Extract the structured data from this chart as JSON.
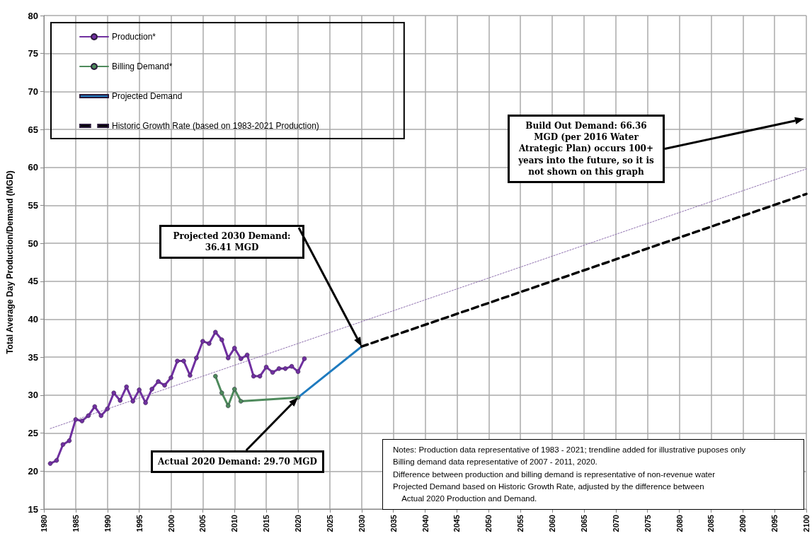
{
  "chart_data": {
    "type": "line",
    "ylabel": "Total Average Day Production/Demand (MGD)",
    "xlim": [
      1980,
      2100
    ],
    "xticks": [
      1980,
      1985,
      1990,
      1995,
      2000,
      2005,
      2010,
      2015,
      2020,
      2025,
      2030,
      2035,
      2040,
      2045,
      2050,
      2055,
      2060,
      2065,
      2070,
      2075,
      2080,
      2085,
      2090,
      2095,
      2100
    ],
    "ylim": [
      15,
      80
    ],
    "yticks": [
      15,
      20,
      25,
      30,
      35,
      40,
      45,
      50,
      55,
      60,
      65,
      70,
      75,
      80
    ],
    "grid": true,
    "legend": "top left",
    "series": [
      {
        "name": "Production*",
        "color": "#7030a0",
        "marker": "circle",
        "line_style": "solid",
        "x": [
          1981,
          1982,
          1983,
          1984,
          1985,
          1986,
          1987,
          1988,
          1989,
          1990,
          1991,
          1992,
          1993,
          1994,
          1995,
          1996,
          1997,
          1998,
          1999,
          2000,
          2001,
          2002,
          2003,
          2004,
          2005,
          2006,
          2007,
          2008,
          2009,
          2010,
          2011,
          2012,
          2013,
          2014,
          2015,
          2016,
          2017,
          2018,
          2019,
          2020,
          2021
        ],
        "values": [
          21.0,
          21.4,
          23.5,
          24.0,
          26.8,
          26.6,
          27.3,
          28.5,
          27.3,
          28.2,
          30.3,
          29.3,
          31.1,
          29.2,
          30.7,
          29.0,
          30.8,
          31.8,
          31.3,
          32.3,
          34.5,
          34.5,
          32.6,
          34.9,
          37.1,
          36.8,
          38.3,
          37.3,
          34.9,
          36.2,
          34.8,
          35.3,
          32.5,
          32.5,
          33.7,
          33.0,
          33.5,
          33.5,
          33.8,
          33.1,
          34.8
        ]
      },
      {
        "name": "Billing Demand*",
        "color": "#4e8a5c",
        "marker": "circle",
        "line_style": "solid",
        "x": [
          2007,
          2008,
          2009,
          2010,
          2011,
          2020
        ],
        "values": [
          32.5,
          30.3,
          28.6,
          30.8,
          29.2,
          29.7
        ]
      },
      {
        "name": "Projected Demand",
        "color": "#1f7bbf",
        "marker": "none",
        "line_style": "solid",
        "x": [
          2020,
          2030
        ],
        "values": [
          29.7,
          36.4
        ]
      },
      {
        "name": "Historic Growth Rate (based on 1983-2021 Production)",
        "color": "#000000",
        "marker": "none",
        "line_style": "dashed",
        "x": [
          2030,
          2100
        ],
        "values": [
          36.4,
          56.5
        ]
      },
      {
        "color": "#8e6fae",
        "marker": "none",
        "line_style": "dotted",
        "x": [
          1981,
          2100
        ],
        "values": [
          25.6,
          59.8
        ]
      }
    ],
    "annotations": [
      "Projected 2030 Demand: 36.41 MGD",
      "Actual 2020 Demand: 29.70 MGD",
      "Build Out Demand: 66.36 MGD (per 2016 Water Atrategic Plan) occurs 100+ years into the future, so it is not shown on this graph",
      "Notes: Production data representative of 1983 - 2021; trendline added for illustrative puposes only\nBilling demand data representative of 2007 - 2011, 2020.\nDifference between production and billing demand is representative of non-revenue water\nProjected Demand based on Historic Growth Rate, adjusted by the difference between\n    Actual 2020 Production and Demand."
    ]
  }
}
